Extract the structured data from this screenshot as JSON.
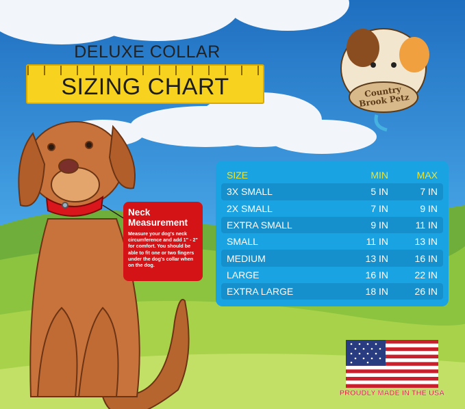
{
  "header": {
    "subtitle": "DELUXE COLLAR",
    "title": "SIZING CHART"
  },
  "brand": {
    "name_line1": "Country",
    "name_line2": "Brook Petz",
    "registered": "®"
  },
  "neck_box": {
    "title": "Neck Measurement",
    "body": "Measure your dog's neck circumference and add 1\" - 2\" for comfort. You should be able to fit one or two fingers under the dog's collar when on the dog."
  },
  "table": {
    "headers": {
      "size": "SIZE",
      "min": "MIN",
      "max": "MAX"
    },
    "rows": [
      {
        "size": "3X SMALL",
        "min": "5 IN",
        "max": "7 IN"
      },
      {
        "size": "2X SMALL",
        "min": "7 IN",
        "max": "9 IN"
      },
      {
        "size": "EXTRA SMALL",
        "min": "9 IN",
        "max": "11 IN"
      },
      {
        "size": "SMALL",
        "min": "11 IN",
        "max": "13 IN"
      },
      {
        "size": "MEDIUM",
        "min": "13 IN",
        "max": "16 IN"
      },
      {
        "size": "LARGE",
        "min": "16 IN",
        "max": "22 IN"
      },
      {
        "size": "EXTRA LARGE",
        "min": "18 IN",
        "max": "26 IN"
      }
    ]
  },
  "footer": {
    "made_in": "PROUDLY MADE IN THE USA"
  },
  "colors": {
    "table_bg": "#1aa3e3",
    "header_text": "#e8e63a",
    "neck_box": "#d41317",
    "ruler": "#f7d31f",
    "dog": "#c9733c",
    "collar": "#d9161b"
  }
}
